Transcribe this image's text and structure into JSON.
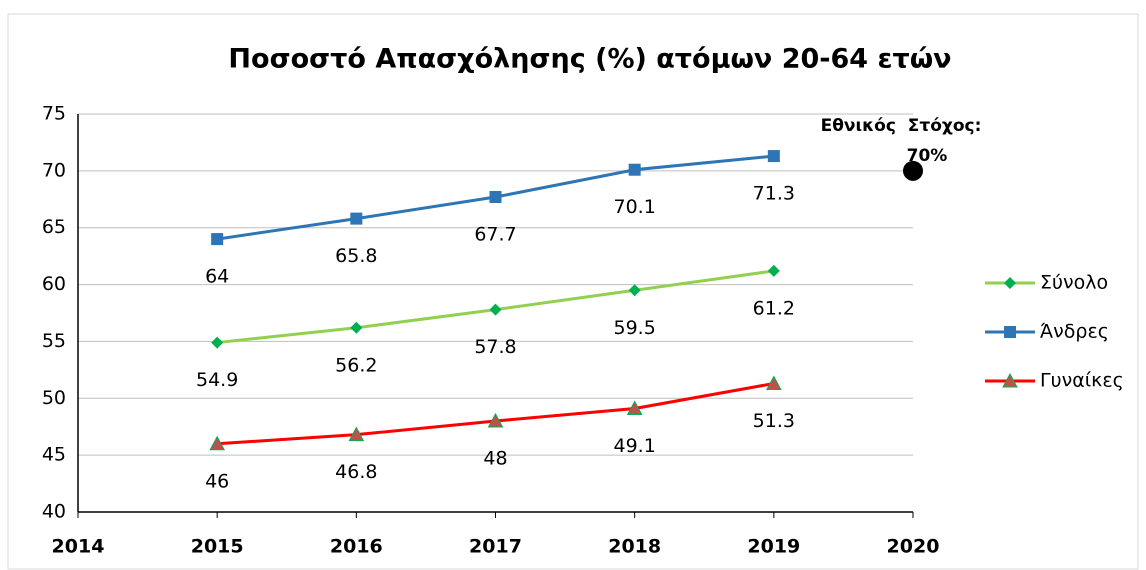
{
  "chart_data": {
    "type": "line",
    "title": "Ποσοστό Απασχόλησης (%) ατόμων 20-64 ετών",
    "x": [
      2015,
      2016,
      2017,
      2018,
      2019
    ],
    "xlim": [
      2014,
      2020
    ],
    "xticks": [
      2014,
      2015,
      2016,
      2017,
      2018,
      2019,
      2020
    ],
    "ylim": [
      40,
      75
    ],
    "yticks": [
      40,
      45,
      50,
      55,
      60,
      65,
      70,
      75
    ],
    "grid": true,
    "legend": "right",
    "series": [
      {
        "name": "Σύνολο",
        "color": "#92d050",
        "marker": "diamond",
        "marker_color": "#00b050",
        "values": [
          54.9,
          56.2,
          57.8,
          59.5,
          61.2
        ]
      },
      {
        "name": "Άνδρες",
        "color": "#2e75b6",
        "marker": "square",
        "marker_color": "#2e75b6",
        "values": [
          64,
          65.8,
          67.7,
          70.1,
          71.3
        ]
      },
      {
        "name": "Γυναίκες",
        "color": "#ff0000",
        "marker": "triangle",
        "marker_color": "#c0504d",
        "values": [
          46,
          46.8,
          48,
          49.1,
          51.3
        ]
      }
    ],
    "annotation": {
      "lines": [
        "Εθνικός  Στόχος:",
        "70%"
      ],
      "x": 2020,
      "y": 70,
      "color": "#000000"
    }
  }
}
